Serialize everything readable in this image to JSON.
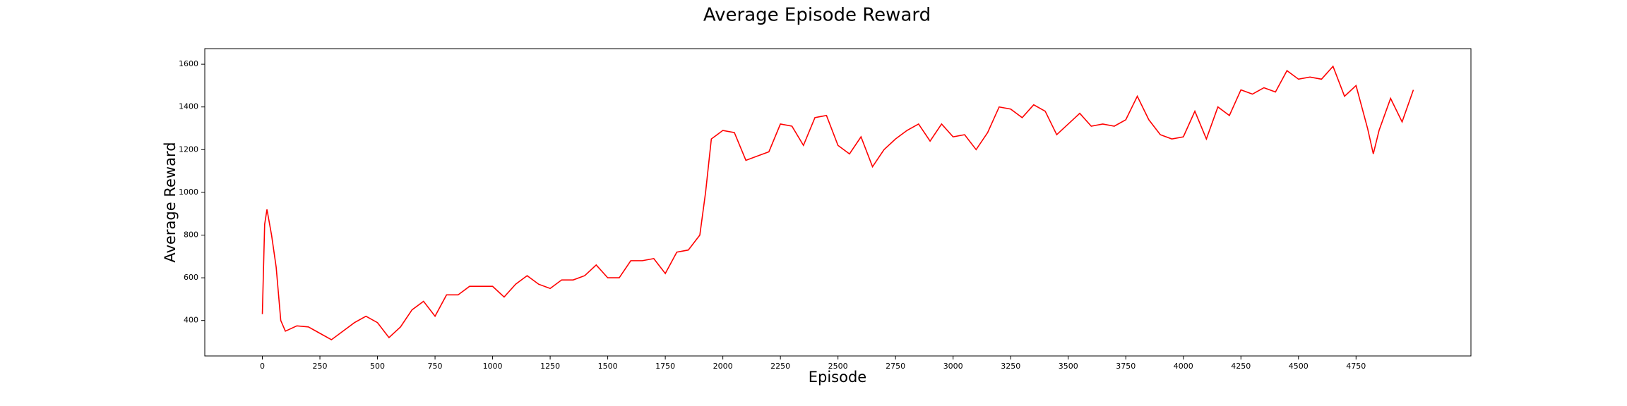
{
  "chart_data": {
    "type": "line",
    "title": "Average Episode Reward",
    "x_label": "Episode",
    "y_label": "Average Reward",
    "x": [
      0,
      10,
      20,
      40,
      60,
      80,
      100,
      150,
      200,
      250,
      300,
      350,
      400,
      450,
      500,
      550,
      600,
      650,
      700,
      750,
      800,
      850,
      900,
      950,
      1000,
      1050,
      1100,
      1150,
      1200,
      1250,
      1300,
      1350,
      1400,
      1450,
      1500,
      1550,
      1600,
      1650,
      1700,
      1750,
      1800,
      1850,
      1900,
      1925,
      1950,
      2000,
      2050,
      2100,
      2150,
      2200,
      2250,
      2300,
      2350,
      2400,
      2450,
      2500,
      2550,
      2600,
      2650,
      2700,
      2750,
      2800,
      2850,
      2900,
      2950,
      3000,
      3050,
      3100,
      3150,
      3200,
      3250,
      3300,
      3350,
      3400,
      3450,
      3500,
      3550,
      3600,
      3650,
      3700,
      3750,
      3800,
      3850,
      3900,
      3950,
      4000,
      4050,
      4100,
      4150,
      4200,
      4250,
      4300,
      4350,
      4400,
      4450,
      4500,
      4550,
      4600,
      4650,
      4700,
      4750,
      4800,
      4825,
      4850,
      4900,
      4950,
      4999
    ],
    "series": [
      {
        "name": "Average Reward",
        "color": "#ff0000",
        "values": [
          430,
          850,
          920,
          800,
          650,
          400,
          350,
          375,
          370,
          340,
          310,
          350,
          390,
          420,
          390,
          320,
          370,
          450,
          490,
          420,
          520,
          520,
          560,
          560,
          560,
          510,
          570,
          610,
          570,
          550,
          590,
          590,
          610,
          660,
          600,
          600,
          680,
          680,
          690,
          620,
          720,
          730,
          800,
          1000,
          1250,
          1290,
          1280,
          1150,
          1170,
          1190,
          1320,
          1310,
          1220,
          1350,
          1360,
          1220,
          1180,
          1260,
          1120,
          1200,
          1250,
          1290,
          1320,
          1240,
          1320,
          1260,
          1270,
          1200,
          1280,
          1400,
          1390,
          1350,
          1410,
          1380,
          1270,
          1320,
          1370,
          1310,
          1320,
          1310,
          1340,
          1450,
          1340,
          1270,
          1250,
          1260,
          1380,
          1250,
          1400,
          1360,
          1480,
          1460,
          1490,
          1470,
          1570,
          1530,
          1540,
          1530,
          1590,
          1450,
          1500,
          1300,
          1180,
          1290,
          1440,
          1330,
          1480
        ]
      }
    ],
    "xlim": [
      -250,
      5249
    ],
    "ylim": [
      234,
      1673
    ],
    "xticks": [
      0,
      250,
      500,
      750,
      1000,
      1250,
      1500,
      1750,
      2000,
      2250,
      2500,
      2750,
      3000,
      3250,
      3500,
      3750,
      4000,
      4250,
      4500,
      4750
    ],
    "yticks": [
      400,
      600,
      800,
      1000,
      1200,
      1400,
      1600
    ]
  }
}
